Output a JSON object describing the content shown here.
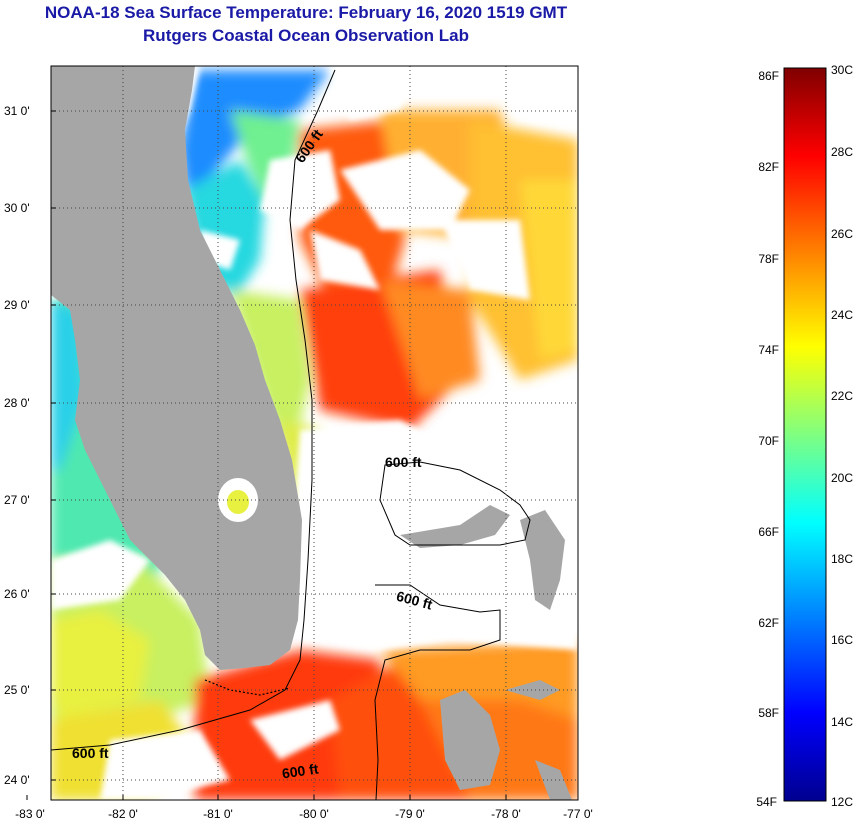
{
  "header": {
    "title": "NOAA-18 Sea Surface Temperature:  February 16, 2020 1519 GMT",
    "subtitle": "Rutgers Coastal Ocean Observation Lab"
  },
  "map": {
    "lat_labels": [
      "31 0'",
      "30 0'",
      "29 0'",
      "28 0'",
      "27 0'",
      "26 0'",
      "25 0'",
      "24 0'"
    ],
    "lon_labels": [
      "-83 0'",
      "-82 0'",
      "-81 0'",
      "-80 0'",
      "-79 0'",
      "-78 0'",
      "-77 0'"
    ],
    "contour_labels": [
      "600 ft",
      "600 ft",
      "600 ft",
      "600 ft",
      "600 ft"
    ],
    "colors": {
      "land": "#a6a6a6",
      "cloud": "#ffffff"
    }
  },
  "colorbar": {
    "fahrenheit_labels": [
      "86F",
      "82F",
      "78F",
      "74F",
      "70F",
      "66F",
      "62F",
      "58F",
      "54F"
    ],
    "celsius_labels": [
      "30C",
      "28C",
      "26C",
      "24C",
      "22C",
      "20C",
      "18C",
      "16C",
      "14C",
      "12C"
    ],
    "stops": [
      "#00008f",
      "#0000ff",
      "#0080ff",
      "#00ffff",
      "#80ff80",
      "#ffff00",
      "#ff8000",
      "#ff0000",
      "#800000"
    ]
  }
}
